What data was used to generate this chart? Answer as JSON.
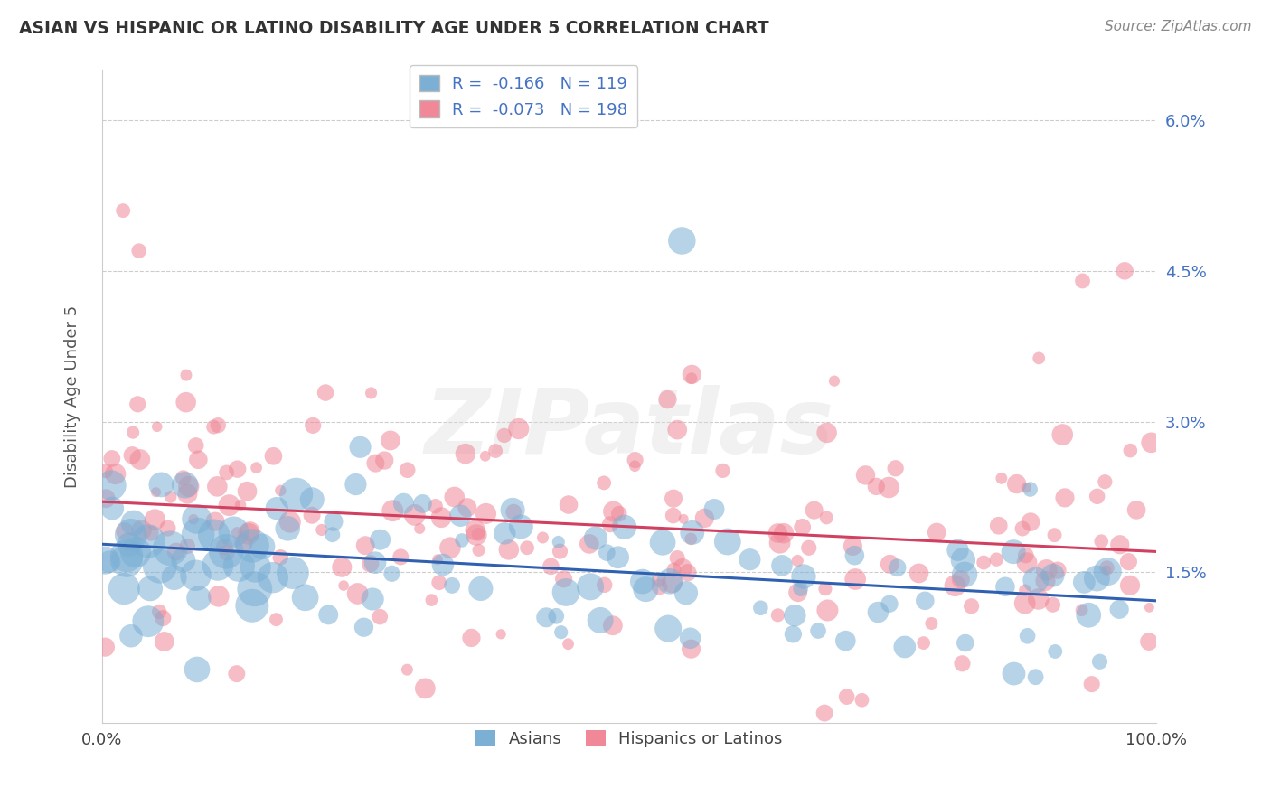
{
  "title": "ASIAN VS HISPANIC OR LATINO DISABILITY AGE UNDER 5 CORRELATION CHART",
  "source": "Source: ZipAtlas.com",
  "ylabel": "Disability Age Under 5",
  "asian_color": "#7bafd4",
  "hispanic_color": "#f08898",
  "asian_line_color": "#3060b0",
  "hispanic_line_color": "#d04060",
  "asian_R": -0.166,
  "asian_N": 119,
  "hispanic_R": -0.073,
  "hispanic_N": 198,
  "xlim": [
    0.0,
    100.0
  ],
  "ylim": [
    0.0,
    6.5
  ],
  "yticks": [
    1.5,
    3.0,
    4.5,
    6.0
  ],
  "yticklabels": [
    "1.5%",
    "3.0%",
    "4.5%",
    "6.0%"
  ],
  "xticks": [
    0.0,
    100.0
  ],
  "xticklabels": [
    "0.0%",
    "100.0%"
  ],
  "watermark_text": "ZIPatlas",
  "legend_labels": [
    "Asians",
    "Hispanics or Latinos"
  ],
  "background_color": "#ffffff",
  "grid_color": "#cccccc",
  "title_color": "#333333",
  "tick_color": "#4472c4",
  "source_color": "#888888"
}
